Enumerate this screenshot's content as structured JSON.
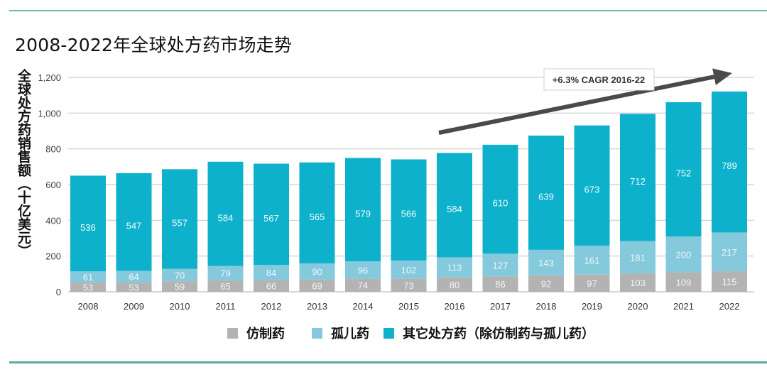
{
  "title": "2008-2022年全球处方药市场走势",
  "colors": {
    "generic": "#b4b3b4",
    "orphan": "#85c9dc",
    "other": "#0eb1cc",
    "rule": "#6fb8b0",
    "arrow": "#4a4a4a",
    "grid": "#d6d6d6"
  },
  "chart_data": {
    "type": "bar",
    "stacked": true,
    "title": "2008-2022年全球处方药市场走势",
    "xlabel": "",
    "ylabel": "全球处方药销售额（十亿美元）",
    "ylim": [
      0,
      1200
    ],
    "yticks": [
      0,
      200,
      400,
      600,
      800,
      1000,
      1200
    ],
    "ytick_labels": [
      "0",
      "200",
      "400",
      "600",
      "800",
      "1,000",
      "1,200"
    ],
    "grid": true,
    "legend_position": "bottom-center",
    "categories": [
      "2008",
      "2009",
      "2010",
      "2011",
      "2012",
      "2013",
      "2014",
      "2015",
      "2016",
      "2017",
      "2018",
      "2019",
      "2020",
      "2021",
      "2022"
    ],
    "series": [
      {
        "name": "仿制药",
        "key": "generic",
        "values": [
          53,
          53,
          59,
          65,
          66,
          69,
          74,
          73,
          80,
          86,
          92,
          97,
          103,
          109,
          115
        ]
      },
      {
        "name": "孤儿药",
        "key": "orphan",
        "values": [
          61,
          64,
          70,
          79,
          84,
          90,
          96,
          102,
          113,
          127,
          143,
          161,
          181,
          200,
          217
        ]
      },
      {
        "name": "其它处方药（除仿制药与孤儿药）",
        "key": "other",
        "values": [
          536,
          547,
          557,
          584,
          567,
          565,
          579,
          566,
          584,
          610,
          639,
          673,
          712,
          752,
          789
        ]
      }
    ],
    "annotations": [
      {
        "type": "arrow",
        "from_category": "2016",
        "to_category": "2022",
        "label": "+6.3% CAGR 2016-22"
      }
    ]
  }
}
